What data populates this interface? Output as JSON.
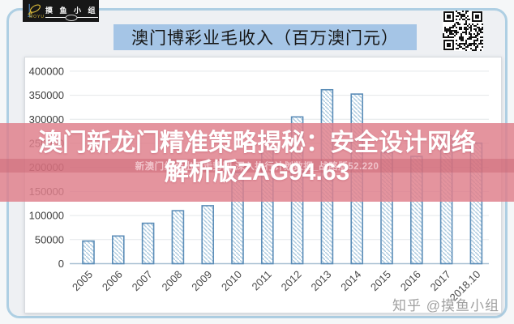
{
  "logo": {
    "brand_cn": "摸 鱼 小 组",
    "brand_en": "MOYU"
  },
  "header": {
    "title": "澳门博彩业毛收入（百万澳门元）",
    "highlight_color": "#a5c5e6"
  },
  "overlay": {
    "line1": "澳门新龙门精准策略揭秘：安全设计网络",
    "line2": "解析版ZAG94.63",
    "strip_text": "新澳门综合出码走势图,深入执行计划数据_战略版52.220",
    "band_color": "#df7f8c"
  },
  "watermark": {
    "text": "知乎 @摸鱼小组"
  },
  "chart_data": {
    "type": "bar",
    "title": "澳门博彩业毛收入（百万澳门元）",
    "categories": [
      "2005",
      "2006",
      "2007",
      "2008",
      "2009",
      "2010",
      "2011",
      "2012",
      "2013",
      "2014",
      "2015",
      "2016",
      "2017",
      "2018.10"
    ],
    "values": [
      47000,
      57500,
      84000,
      110000,
      120500,
      189600,
      269000,
      305000,
      361500,
      352500,
      231000,
      223000,
      266000,
      250500
    ],
    "xlabel": "",
    "ylabel": "",
    "ylim": [
      0,
      400000
    ],
    "ytick_step": 50000,
    "grid": true,
    "legend": "none",
    "bar_fill": "#ffffff",
    "bar_hatch_color": "#aecbdf",
    "bar_stroke": "#5b8db8",
    "axis_color": "#a9c0d2",
    "grid_color": "#e4e7ea"
  }
}
